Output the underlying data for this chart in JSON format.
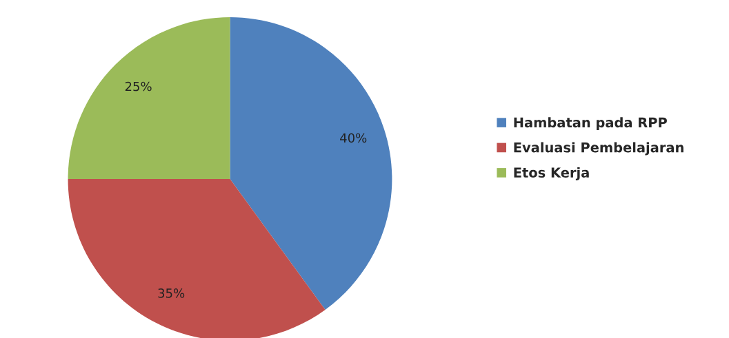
{
  "chart_data": {
    "type": "pie",
    "categories": [
      "Hambatan pada RPP",
      "Evaluasi Pembelajaran",
      "Etos Kerja"
    ],
    "values": [
      40,
      35,
      25
    ],
    "colors": [
      "#4f81bd",
      "#c0504d",
      "#9bbb59"
    ],
    "value_labels": [
      "40%",
      "35%",
      "25%"
    ],
    "legend": "right"
  }
}
